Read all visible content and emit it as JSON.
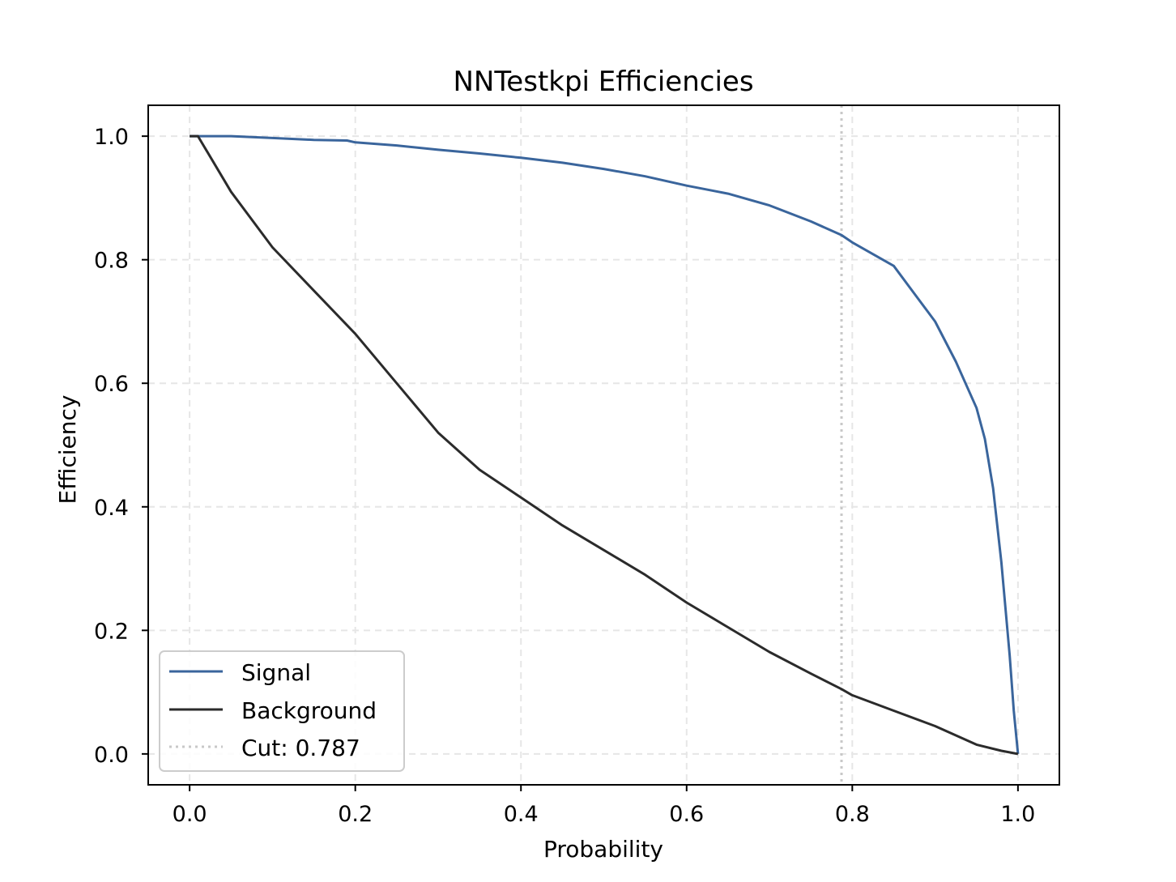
{
  "chart_data": {
    "type": "line",
    "title": "NNTestkpi Efficiencies",
    "xlabel": "Probability",
    "ylabel": "Efficiency",
    "xlim": [
      -0.05,
      1.05
    ],
    "ylim": [
      -0.05,
      1.05
    ],
    "xticks": [
      0.0,
      0.2,
      0.4,
      0.6,
      0.8,
      1.0
    ],
    "xtick_labels": [
      "0.0",
      "0.2",
      "0.4",
      "0.6",
      "0.8",
      "1.0"
    ],
    "yticks": [
      0.0,
      0.2,
      0.4,
      0.6,
      0.8,
      1.0
    ],
    "ytick_labels": [
      "0.0",
      "0.2",
      "0.4",
      "0.6",
      "0.8",
      "1.0"
    ],
    "grid": true,
    "legend_position": "lower-left",
    "series": [
      {
        "name": "Signal",
        "color": "#3a659c",
        "x": [
          0.0,
          0.05,
          0.1,
          0.15,
          0.19,
          0.2,
          0.25,
          0.3,
          0.35,
          0.4,
          0.45,
          0.5,
          0.55,
          0.6,
          0.65,
          0.7,
          0.75,
          0.787,
          0.8,
          0.85,
          0.875,
          0.9,
          0.925,
          0.95,
          0.96,
          0.97,
          0.98,
          0.99,
          0.995,
          1.0
        ],
        "y": [
          1.0,
          1.0,
          0.997,
          0.994,
          0.993,
          0.99,
          0.985,
          0.978,
          0.972,
          0.965,
          0.957,
          0.947,
          0.935,
          0.92,
          0.907,
          0.888,
          0.862,
          0.84,
          0.828,
          0.79,
          0.745,
          0.7,
          0.635,
          0.56,
          0.51,
          0.43,
          0.31,
          0.16,
          0.07,
          0.0
        ]
      },
      {
        "name": "Background",
        "color": "#2b2b2b",
        "x": [
          0.0,
          0.01,
          0.05,
          0.1,
          0.15,
          0.2,
          0.25,
          0.3,
          0.35,
          0.4,
          0.45,
          0.5,
          0.55,
          0.6,
          0.65,
          0.7,
          0.75,
          0.787,
          0.8,
          0.85,
          0.9,
          0.95,
          0.98,
          1.0
        ],
        "y": [
          1.0,
          1.0,
          0.91,
          0.82,
          0.75,
          0.68,
          0.6,
          0.52,
          0.46,
          0.415,
          0.37,
          0.33,
          0.29,
          0.245,
          0.205,
          0.165,
          0.13,
          0.105,
          0.095,
          0.07,
          0.045,
          0.015,
          0.005,
          0.0
        ]
      }
    ],
    "cut": {
      "label": "Cut: 0.787",
      "x": 0.787,
      "color": "#c8c8c8"
    }
  }
}
